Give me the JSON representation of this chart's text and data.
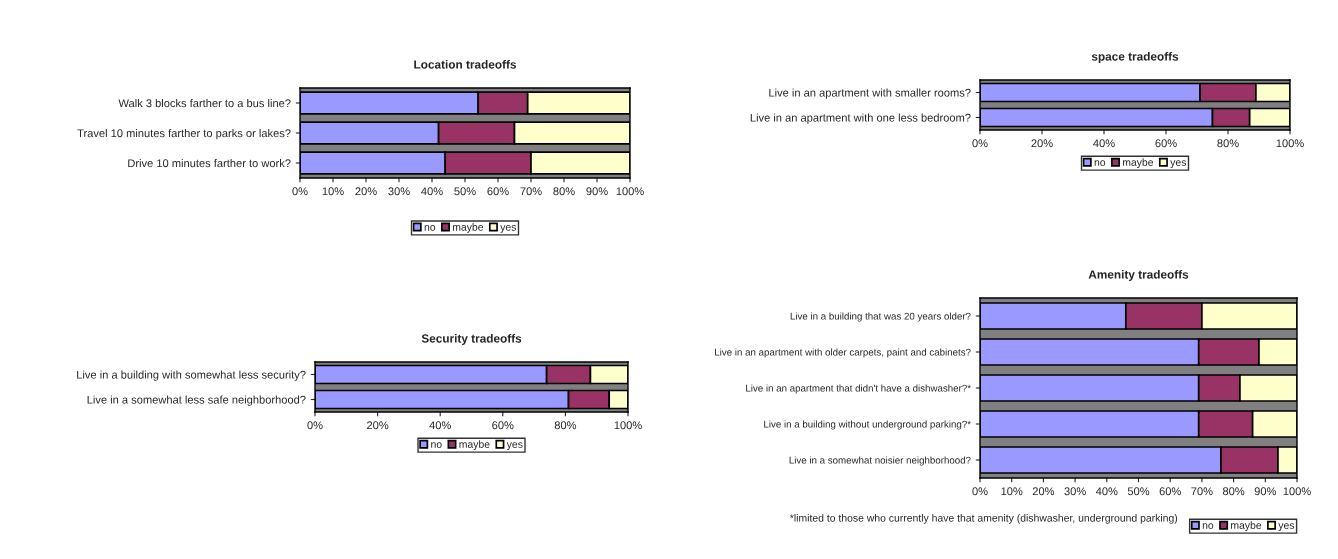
{
  "chart_data": [
    {
      "type": "bar",
      "orientation": "horizontal",
      "stacked": true,
      "title": "Location tradeoffs",
      "categories": [
        "Walk 3 blocks farther to a bus line?",
        "Travel 10 minutes farther to parks or lakes?",
        "Drive 10 minutes farther to work?"
      ],
      "series": [
        {
          "name": "no",
          "color": "#9999ff",
          "values": [
            54,
            42,
            44
          ]
        },
        {
          "name": "maybe",
          "color": "#993366",
          "values": [
            15,
            23,
            26
          ]
        },
        {
          "name": "yes",
          "color": "#ffffcc",
          "values": [
            31,
            35,
            30
          ]
        }
      ],
      "xlim": [
        0,
        100
      ],
      "xticks": [
        {
          "value": 0,
          "label": "0%"
        },
        {
          "value": 10,
          "label": "10%"
        },
        {
          "value": 20,
          "label": "20%"
        },
        {
          "value": 30,
          "label": "30%"
        },
        {
          "value": 40,
          "label": "40%"
        },
        {
          "value": 50,
          "label": "50%"
        },
        {
          "value": 60,
          "label": "60%"
        },
        {
          "value": 70,
          "label": "70%"
        },
        {
          "value": 80,
          "label": "80%"
        },
        {
          "value": 90,
          "label": "90%"
        },
        {
          "value": 100,
          "label": "100%"
        }
      ],
      "legend": "bottom",
      "grid": false
    },
    {
      "type": "bar",
      "orientation": "horizontal",
      "stacked": true,
      "title": "space tradeoffs",
      "categories": [
        "Live in an apartment with smaller rooms?",
        "Live in an apartment with one less bedroom?"
      ],
      "series": [
        {
          "name": "no",
          "color": "#9999ff",
          "values": [
            71,
            75
          ]
        },
        {
          "name": "maybe",
          "color": "#993366",
          "values": [
            18,
            12
          ]
        },
        {
          "name": "yes",
          "color": "#ffffcc",
          "values": [
            11,
            13
          ]
        }
      ],
      "xlim": [
        0,
        100
      ],
      "xticks": [
        {
          "value": 0,
          "label": "0%"
        },
        {
          "value": 20,
          "label": "20%"
        },
        {
          "value": 40,
          "label": "40%"
        },
        {
          "value": 60,
          "label": "60%"
        },
        {
          "value": 80,
          "label": "80%"
        },
        {
          "value": 100,
          "label": "100%"
        }
      ],
      "legend": "bottom",
      "grid": false
    },
    {
      "type": "bar",
      "orientation": "horizontal",
      "stacked": true,
      "title": "Security tradeoffs",
      "categories": [
        "Live in a building with somewhat less security?",
        "Live in a somewhat less safe neighborhood?"
      ],
      "series": [
        {
          "name": "no",
          "color": "#9999ff",
          "values": [
            74,
            81
          ]
        },
        {
          "name": "maybe",
          "color": "#993366",
          "values": [
            14,
            13
          ]
        },
        {
          "name": "yes",
          "color": "#ffffcc",
          "values": [
            12,
            6
          ]
        }
      ],
      "xlim": [
        0,
        100
      ],
      "xticks": [
        {
          "value": 0,
          "label": "0%"
        },
        {
          "value": 20,
          "label": "20%"
        },
        {
          "value": 40,
          "label": "40%"
        },
        {
          "value": 60,
          "label": "60%"
        },
        {
          "value": 80,
          "label": "80%"
        },
        {
          "value": 100,
          "label": "100%"
        }
      ],
      "legend": "bottom",
      "grid": false
    },
    {
      "type": "bar",
      "orientation": "horizontal",
      "stacked": true,
      "title": "Amenity tradeoffs",
      "categories": [
        "Live in a building that was 20 years older?",
        "Live in an apartment with older carpets, paint and cabinets?",
        "Live in an apartment that didn't have a dishwasher?*",
        "Live in a building without underground parking?*",
        "Live in a somewhat noisier neighborhood?"
      ],
      "series": [
        {
          "name": "no",
          "color": "#9999ff",
          "values": [
            46,
            69,
            69,
            69,
            76
          ]
        },
        {
          "name": "maybe",
          "color": "#993366",
          "values": [
            24,
            19,
            13,
            17,
            18
          ]
        },
        {
          "name": "yes",
          "color": "#ffffcc",
          "values": [
            30,
            12,
            18,
            14,
            6
          ]
        }
      ],
      "xlim": [
        0,
        100
      ],
      "xticks": [
        {
          "value": 0,
          "label": "0%"
        },
        {
          "value": 10,
          "label": "10%"
        },
        {
          "value": 20,
          "label": "20%"
        },
        {
          "value": 30,
          "label": "30%"
        },
        {
          "value": 40,
          "label": "40%"
        },
        {
          "value": 50,
          "label": "50%"
        },
        {
          "value": 60,
          "label": "60%"
        },
        {
          "value": 70,
          "label": "70%"
        },
        {
          "value": 80,
          "label": "80%"
        },
        {
          "value": 90,
          "label": "90%"
        },
        {
          "value": 100,
          "label": "100%"
        }
      ],
      "legend": "bottom",
      "grid": false,
      "annotations": [
        "*limited to those who currently have that amenity (dishwasher, underground parking)"
      ]
    }
  ]
}
